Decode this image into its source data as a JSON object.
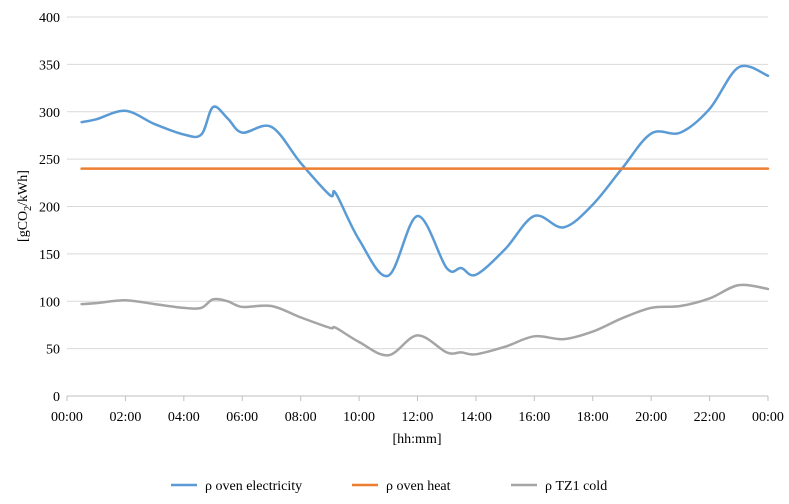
{
  "chart_data": {
    "type": "line",
    "title": "",
    "xlabel": "[hh:mm]",
    "ylabel": "[gCO2/kWh]",
    "ylabel_parts": {
      "pre": "[gCO",
      "sub": "2",
      "post": "/kWh]"
    },
    "x_ticks": [
      "00:00",
      "02:00",
      "04:00",
      "06:00",
      "08:00",
      "10:00",
      "12:00",
      "14:00",
      "16:00",
      "18:00",
      "20:00",
      "22:00",
      "00:00"
    ],
    "xlim": [
      0,
      24
    ],
    "ylim": [
      0,
      400
    ],
    "y_ticks": [
      0,
      50,
      100,
      150,
      200,
      250,
      300,
      350,
      400
    ],
    "grid": true,
    "legend_position": "bottom",
    "series": [
      {
        "name": "ρ oven electricity",
        "color": "#5b9bd5",
        "points": [
          [
            0.5,
            289
          ],
          [
            1,
            292
          ],
          [
            2,
            301
          ],
          [
            3,
            287
          ],
          [
            4,
            276
          ],
          [
            4.6,
            276
          ],
          [
            5,
            305
          ],
          [
            5.5,
            293
          ],
          [
            6,
            278
          ],
          [
            7,
            284
          ],
          [
            8,
            246
          ],
          [
            9,
            212
          ],
          [
            9.2,
            214
          ],
          [
            10,
            165
          ],
          [
            11,
            127
          ],
          [
            12,
            190
          ],
          [
            13,
            135
          ],
          [
            13.5,
            135
          ],
          [
            14,
            128
          ],
          [
            15,
            155
          ],
          [
            16,
            190
          ],
          [
            17,
            178
          ],
          [
            18,
            202
          ],
          [
            19,
            240
          ],
          [
            20,
            277
          ],
          [
            21,
            278
          ],
          [
            22,
            303
          ],
          [
            23,
            347
          ],
          [
            24,
            338
          ]
        ]
      },
      {
        "name": "ρ oven heat",
        "color": "#ed7d31",
        "points": [
          [
            0.5,
            240
          ],
          [
            24,
            240
          ]
        ]
      },
      {
        "name": "ρ TZ1 cold",
        "color": "#a5a5a5",
        "points": [
          [
            0.5,
            97
          ],
          [
            1,
            98
          ],
          [
            2,
            101
          ],
          [
            3,
            97
          ],
          [
            4,
            93
          ],
          [
            4.6,
            93
          ],
          [
            5,
            102
          ],
          [
            5.5,
            100
          ],
          [
            6,
            94
          ],
          [
            7,
            95
          ],
          [
            8,
            83
          ],
          [
            9,
            72
          ],
          [
            9.2,
            72
          ],
          [
            10,
            57
          ],
          [
            11,
            43
          ],
          [
            12,
            64
          ],
          [
            13,
            46
          ],
          [
            13.5,
            46
          ],
          [
            14,
            44
          ],
          [
            15,
            52
          ],
          [
            16,
            63
          ],
          [
            17,
            60
          ],
          [
            18,
            68
          ],
          [
            19,
            82
          ],
          [
            20,
            93
          ],
          [
            21,
            95
          ],
          [
            22,
            103
          ],
          [
            23,
            117
          ],
          [
            24,
            113
          ]
        ]
      }
    ]
  }
}
